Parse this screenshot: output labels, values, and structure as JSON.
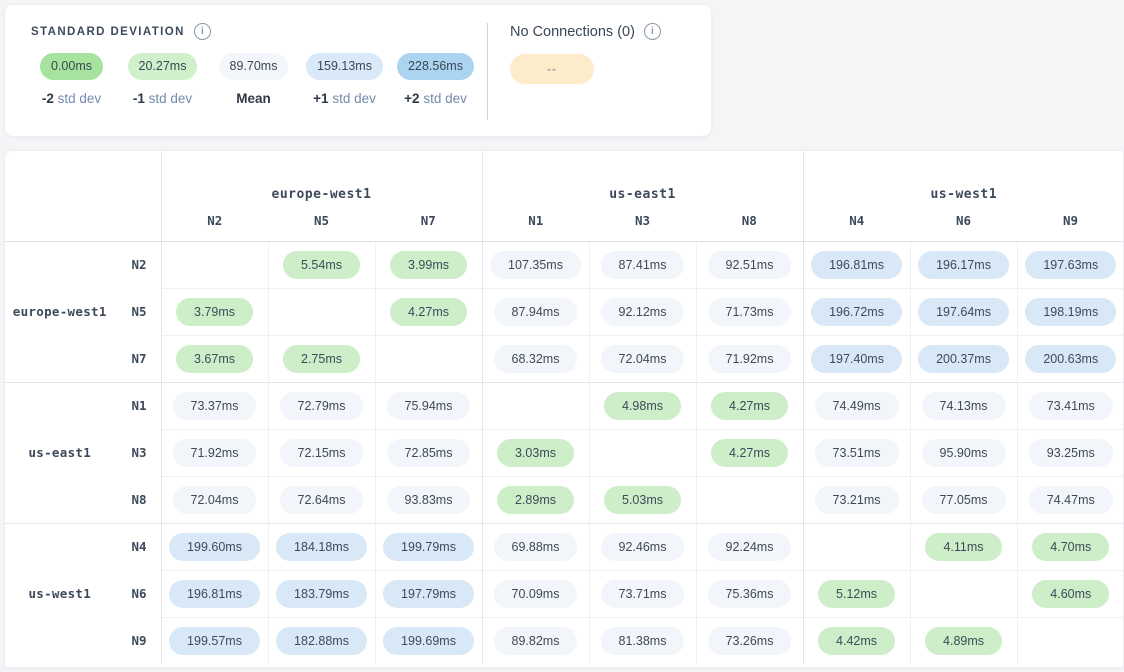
{
  "legend": {
    "title": "STANDARD DEVIATION",
    "stops": [
      {
        "value": "0.00ms",
        "label_bold": "-2",
        "label_rest": "std dev",
        "color": "#a5e39e"
      },
      {
        "value": "20.27ms",
        "label_bold": "-1",
        "label_rest": "std dev",
        "color": "#cff0ca"
      },
      {
        "value": "89.70ms",
        "label_bold": "Mean",
        "label_rest": "",
        "color": "#f3f6fa"
      },
      {
        "value": "159.13ms",
        "label_bold": "+1",
        "label_rest": "std dev",
        "color": "#d9e9f7"
      },
      {
        "value": "228.56ms",
        "label_bold": "+2",
        "label_rest": "std dev",
        "color": "#abd4f1"
      }
    ],
    "no_connections": {
      "title": "No Connections (0)",
      "pill_text": "--",
      "pill_color": "#fcecca"
    }
  },
  "matrix": {
    "unit": "ms",
    "column_groups": [
      {
        "region": "europe-west1",
        "nodes": [
          "N2",
          "N5",
          "N7"
        ]
      },
      {
        "region": "us-east1",
        "nodes": [
          "N1",
          "N3",
          "N8"
        ]
      },
      {
        "region": "us-west1",
        "nodes": [
          "N4",
          "N6",
          "N9"
        ]
      }
    ],
    "row_groups": [
      {
        "region": "europe-west1",
        "rows": [
          {
            "node": "N2",
            "values": [
              null,
              5.54,
              3.99,
              107.35,
              87.41,
              92.51,
              196.81,
              196.17,
              197.63
            ]
          },
          {
            "node": "N5",
            "values": [
              3.79,
              null,
              4.27,
              87.94,
              92.12,
              71.73,
              196.72,
              197.64,
              198.19
            ]
          },
          {
            "node": "N7",
            "values": [
              3.67,
              2.75,
              null,
              68.32,
              72.04,
              71.92,
              197.4,
              200.37,
              200.63
            ]
          }
        ]
      },
      {
        "region": "us-east1",
        "rows": [
          {
            "node": "N1",
            "values": [
              73.37,
              72.79,
              75.94,
              null,
              4.98,
              4.27,
              74.49,
              74.13,
              73.41
            ]
          },
          {
            "node": "N3",
            "values": [
              71.92,
              72.15,
              72.85,
              3.03,
              null,
              4.27,
              73.51,
              95.9,
              93.25
            ]
          },
          {
            "node": "N8",
            "values": [
              72.04,
              72.64,
              93.83,
              2.89,
              5.03,
              null,
              73.21,
              77.05,
              74.47
            ]
          }
        ]
      },
      {
        "region": "us-west1",
        "rows": [
          {
            "node": "N4",
            "values": [
              199.6,
              184.18,
              199.79,
              69.88,
              92.46,
              92.24,
              null,
              4.11,
              4.7
            ]
          },
          {
            "node": "N6",
            "values": [
              196.81,
              183.79,
              197.79,
              70.09,
              73.71,
              75.36,
              5.12,
              null,
              4.6
            ]
          },
          {
            "node": "N9",
            "values": [
              199.57,
              182.88,
              199.69,
              89.82,
              81.38,
              73.26,
              4.42,
              4.89,
              null
            ]
          }
        ]
      }
    ],
    "tone_colors": {
      "low": "#cdeec8",
      "mid": "#f2f5f9",
      "high": "#d8e8f6"
    },
    "tone_thresholds": {
      "low_max": 20.27,
      "high_min": 159.13
    }
  }
}
